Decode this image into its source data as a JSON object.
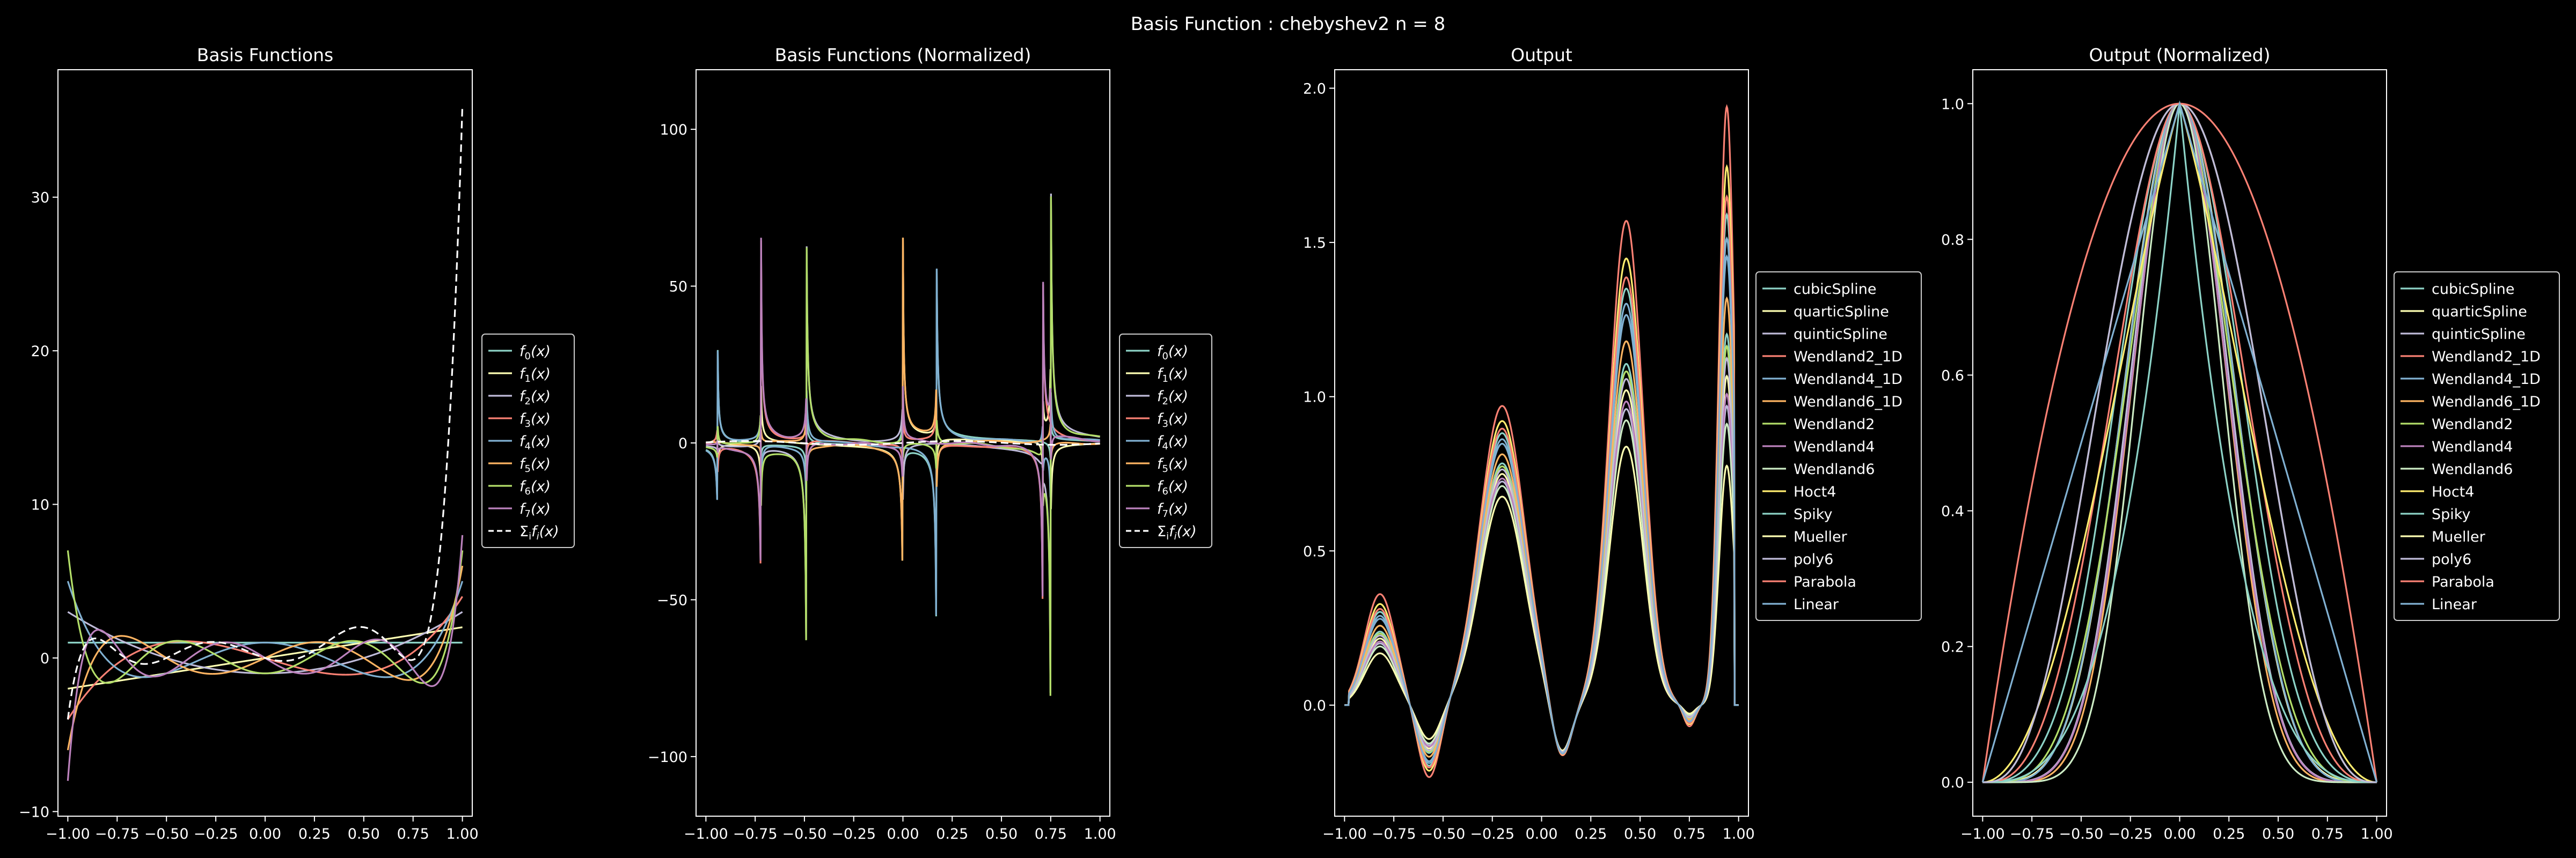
{
  "suptitle": "Basis Function : chebyshev2 n =  8",
  "colors": [
    "#8dd3c7",
    "#feffb3",
    "#bfbbd9",
    "#fa8174",
    "#81b1d2",
    "#fdb462",
    "#b3de69",
    "#bc82bd",
    "#ccebc4",
    "#ffed6f"
  ],
  "chart_data": [
    {
      "type": "line",
      "title": "Basis Functions",
      "xlim": [
        -1.05,
        1.05
      ],
      "ylim": [
        -10.3,
        38.3
      ],
      "xticks": [
        -1.0,
        -0.75,
        -0.5,
        -0.25,
        0.0,
        0.25,
        0.5,
        0.75,
        1.0
      ],
      "xtick_labels": [
        "−1.00",
        "−0.75",
        "−0.50",
        "−0.25",
        "0.00",
        "0.25",
        "0.50",
        "0.75",
        "1.00"
      ],
      "yticks": [
        -10,
        0,
        10,
        20,
        30
      ],
      "ytick_labels": [
        "−10",
        "0",
        "10",
        "20",
        "30"
      ],
      "curve": "chebyshev_u",
      "series": [
        {
          "name": "f0(x)",
          "sub": "0",
          "degree": 0
        },
        {
          "name": "f1(x)",
          "sub": "1",
          "degree": 1
        },
        {
          "name": "f2(x)",
          "sub": "2",
          "degree": 2
        },
        {
          "name": "f3(x)",
          "sub": "3",
          "degree": 3
        },
        {
          "name": "f4(x)",
          "sub": "4",
          "degree": 4
        },
        {
          "name": "f5(x)",
          "sub": "5",
          "degree": 5
        },
        {
          "name": "f6(x)",
          "sub": "6",
          "degree": 6
        },
        {
          "name": "f7(x)",
          "sub": "7",
          "degree": 7
        },
        {
          "name": "Σi fi(x)",
          "sub": "",
          "degree": -1,
          "dashed": true
        }
      ],
      "legend": "right"
    },
    {
      "type": "line",
      "title": "Basis Functions (Normalized)",
      "xlim": [
        -1.05,
        1.05
      ],
      "ylim": [
        -119,
        119
      ],
      "xticks": [
        -1.0,
        -0.75,
        -0.5,
        -0.25,
        0.0,
        0.25,
        0.5,
        0.75,
        1.0
      ],
      "xtick_labels": [
        "−1.00",
        "−0.75",
        "−0.50",
        "−0.25",
        "0.00",
        "0.25",
        "0.50",
        "0.75",
        "1.00"
      ],
      "yticks": [
        -100,
        -50,
        0,
        50,
        100
      ],
      "ytick_labels": [
        "−100",
        "−50",
        "0",
        "50",
        "100"
      ],
      "curve": "normalized_basis",
      "spikes": [
        {
          "x": -0.94,
          "amp": 30
        },
        {
          "x": -0.72,
          "amp": 65
        },
        {
          "x": -0.49,
          "amp": 85
        },
        {
          "x": 0.0,
          "amp": 65
        },
        {
          "x": 0.17,
          "amp": 75
        },
        {
          "x": 0.71,
          "amp": 68
        },
        {
          "x": 0.75,
          "amp": 108
        }
      ],
      "series": [
        {
          "name": "f0(x)",
          "sub": "0"
        },
        {
          "name": "f1(x)",
          "sub": "1"
        },
        {
          "name": "f2(x)",
          "sub": "2"
        },
        {
          "name": "f3(x)",
          "sub": "3"
        },
        {
          "name": "f4(x)",
          "sub": "4"
        },
        {
          "name": "f5(x)",
          "sub": "5"
        },
        {
          "name": "f6(x)",
          "sub": "6"
        },
        {
          "name": "f7(x)",
          "sub": "7"
        },
        {
          "name": "Σi fi(x)",
          "sub": "",
          "dashed": true
        }
      ],
      "legend": "right"
    },
    {
      "type": "line",
      "title": "Output",
      "xlim": [
        -1.05,
        1.05
      ],
      "ylim": [
        -0.36,
        2.06
      ],
      "xticks": [
        -1.0,
        -0.75,
        -0.5,
        -0.25,
        0.0,
        0.25,
        0.5,
        0.75,
        1.0
      ],
      "xtick_labels": [
        "−1.00",
        "−0.75",
        "−0.50",
        "−0.25",
        "0.00",
        "0.25",
        "0.50",
        "0.75",
        "1.00"
      ],
      "yticks": [
        0.0,
        0.5,
        1.0,
        1.5,
        2.0
      ],
      "ytick_labels": [
        "0.0",
        "0.5",
        "1.0",
        "1.5",
        "2.0"
      ],
      "curve": "output_fit",
      "bumps": [
        {
          "c": -0.82,
          "w": 0.11,
          "rel": [
            0.36,
            0.2,
            0.04
          ]
        },
        {
          "c": -0.2,
          "w": 0.16,
          "rel": [
            0.97,
            0.48
          ]
        },
        {
          "c": 0.43,
          "w": 0.12,
          "rel": [
            1.57,
            0.35
          ]
        },
        {
          "c": 0.94,
          "w": 0.055,
          "rel": [
            1.94,
            0.0
          ]
        }
      ],
      "dips": [
        {
          "c": -0.57,
          "w": 0.08,
          "rel": [
            0.24,
            0.03
          ]
        },
        {
          "c": 0.1,
          "w": 0.07,
          "rel": [
            0.19,
            0.15
          ]
        },
        {
          "c": 0.75,
          "w": 0.04,
          "rel": [
            0.07,
            0.0
          ]
        }
      ],
      "series": [
        {
          "name": "cubicSpline",
          "k": 0.62
        },
        {
          "name": "quarticSpline",
          "k": 0.55
        },
        {
          "name": "quinticSpline",
          "k": 0.5
        },
        {
          "name": "Wendland2_1D",
          "k": 1.0
        },
        {
          "name": "Wendland4_1D",
          "k": 0.75
        },
        {
          "name": "Wendland6_1D",
          "k": 0.68
        },
        {
          "name": "Wendland2",
          "k": 0.6
        },
        {
          "name": "Wendland4",
          "k": 0.52
        },
        {
          "name": "Wendland6",
          "k": 0.47
        },
        {
          "name": "Hoct4",
          "k": 0.9
        },
        {
          "name": "Spiky",
          "k": 0.82
        },
        {
          "name": "Mueller",
          "k": 0.4
        },
        {
          "name": "poly6",
          "k": 0.58
        },
        {
          "name": "Parabola",
          "k": 0.85
        },
        {
          "name": "Linear",
          "k": 0.78
        }
      ],
      "legend": "right"
    },
    {
      "type": "line",
      "title": "Output (Normalized)",
      "xlim": [
        -1.05,
        1.05
      ],
      "ylim": [
        -0.05,
        1.05
      ],
      "xticks": [
        -1.0,
        -0.75,
        -0.5,
        -0.25,
        0.0,
        0.25,
        0.5,
        0.75,
        1.0
      ],
      "xtick_labels": [
        "−1.00",
        "−0.75",
        "−0.50",
        "−0.25",
        "0.00",
        "0.25",
        "0.50",
        "0.75",
        "1.00"
      ],
      "yticks": [
        0.0,
        0.2,
        0.4,
        0.6,
        0.8,
        1.0
      ],
      "ytick_labels": [
        "0.0",
        "0.2",
        "0.4",
        "0.6",
        "0.8",
        "1.0"
      ],
      "curve": "kernel",
      "series": [
        {
          "name": "cubicSpline",
          "kernel": "cubic"
        },
        {
          "name": "quarticSpline",
          "kernel": "quartic"
        },
        {
          "name": "quinticSpline",
          "kernel": "quintic"
        },
        {
          "name": "Wendland2_1D",
          "kernel": "w2_1d"
        },
        {
          "name": "Wendland4_1D",
          "kernel": "w4_1d"
        },
        {
          "name": "Wendland6_1D",
          "kernel": "w6_1d"
        },
        {
          "name": "Wendland2",
          "kernel": "w2"
        },
        {
          "name": "Wendland4",
          "kernel": "w4"
        },
        {
          "name": "Wendland6",
          "kernel": "w6"
        },
        {
          "name": "Hoct4",
          "kernel": "hoct4"
        },
        {
          "name": "Spiky",
          "kernel": "spiky"
        },
        {
          "name": "Mueller",
          "kernel": "mueller"
        },
        {
          "name": "poly6",
          "kernel": "poly6"
        },
        {
          "name": "Parabola",
          "kernel": "parabola"
        },
        {
          "name": "Linear",
          "kernel": "linear"
        }
      ],
      "legend": "right"
    }
  ]
}
